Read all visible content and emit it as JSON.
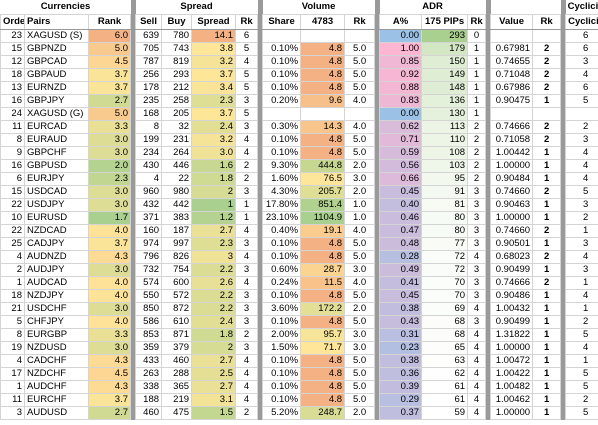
{
  "table": {
    "group_headers": [
      "Currencies",
      "Spread",
      "Volume",
      "ADR",
      "Cyclicity"
    ],
    "columns": [
      "Order",
      "Pairs",
      "Rank",
      "Sell",
      "Buy",
      "Spread",
      "Rk",
      "Share",
      "4783",
      "Rk",
      "A%",
      "175 PIPs",
      "Rk",
      "Value",
      "Rk",
      "Cyclicity"
    ],
    "rows": [
      [
        "23",
        "XAGUSD (S)",
        "6.0",
        "639",
        "780",
        "14.1",
        "6",
        null,
        null,
        null,
        "0.00",
        "293",
        "0",
        null,
        null,
        "6"
      ],
      [
        "15",
        "GBPNZD",
        "5.0",
        "705",
        "743",
        "3.8",
        "5",
        "0.10%",
        "4.8",
        "5.0",
        "1.00",
        "179",
        "1",
        "0.67981",
        "2",
        "6"
      ],
      [
        "12",
        "GBPCAD",
        "4.5",
        "787",
        "819",
        "3.2",
        "4",
        "0.10%",
        "4.8",
        "5.0",
        "0.85",
        "150",
        "1",
        "0.74655",
        "2",
        "3"
      ],
      [
        "18",
        "GBPAUD",
        "3.7",
        "256",
        "293",
        "3.7",
        "5",
        "0.10%",
        "4.8",
        "5.0",
        "0.92",
        "149",
        "1",
        "0.71048",
        "2",
        "4"
      ],
      [
        "13",
        "EURNZD",
        "3.7",
        "178",
        "212",
        "3.4",
        "5",
        "0.10%",
        "4.8",
        "5.0",
        "0.88",
        "148",
        "1",
        "0.67986",
        "2",
        "6"
      ],
      [
        "16",
        "GBPJPY",
        "2.7",
        "235",
        "258",
        "2.3",
        "3",
        "0.20%",
        "9.6",
        "4.0",
        "0.83",
        "136",
        "1",
        "0.90475",
        "1",
        "5"
      ],
      [
        "24",
        "XAGUSD (G)",
        "5.0",
        "168",
        "205",
        "3.7",
        "5",
        null,
        null,
        null,
        "0.00",
        "130",
        "1",
        null,
        null,
        null
      ],
      [
        "11",
        "EURCAD",
        "3.3",
        "8",
        "32",
        "2.4",
        "3",
        "0.30%",
        "14.3",
        "4.0",
        "0.62",
        "113",
        "2",
        "0.74666",
        "2",
        "2"
      ],
      [
        "8",
        "EURAUD",
        "3.0",
        "199",
        "231",
        "3.2",
        "4",
        "0.10%",
        "4.8",
        "5.0",
        "0.71",
        "110",
        "2",
        "0.71058",
        "2",
        "3"
      ],
      [
        "9",
        "GBPCHF",
        "3.0",
        "234",
        "264",
        "3.0",
        "4",
        "0.10%",
        "4.8",
        "5.0",
        "0.59",
        "108",
        "2",
        "1.00442",
        "1",
        "4"
      ],
      [
        "16",
        "GBPUSD",
        "2.0",
        "430",
        "446",
        "1.6",
        "2",
        "9.30%",
        "444.8",
        "2.0",
        "0.56",
        "103",
        "2",
        "1.00000",
        "1",
        "4"
      ],
      [
        "6",
        "EURJPY",
        "2.3",
        "4",
        "22",
        "1.8",
        "2",
        "1.60%",
        "76.5",
        "3.0",
        "0.66",
        "95",
        "2",
        "0.90484",
        "1",
        "4"
      ],
      [
        "15",
        "USDCAD",
        "3.0",
        "960",
        "980",
        "2",
        "3",
        "4.30%",
        "205.7",
        "2.0",
        "0.45",
        "91",
        "3",
        "0.74660",
        "2",
        "5"
      ],
      [
        "22",
        "USDJPY",
        "3.0",
        "432",
        "442",
        "1",
        "1",
        "17.80%",
        "851.4",
        "1.0",
        "0.40",
        "81",
        "3",
        "0.90463",
        "1",
        "3"
      ],
      [
        "10",
        "EURUSD",
        "1.7",
        "371",
        "383",
        "1.2",
        "1",
        "23.10%",
        "1104.9",
        "1.0",
        "0.46",
        "80",
        "3",
        "1.00000",
        "1",
        "2"
      ],
      [
        "22",
        "NZDCAD",
        "4.0",
        "160",
        "187",
        "2.7",
        "4",
        "0.40%",
        "19.1",
        "4.0",
        "0.47",
        "80",
        "3",
        "0.74660",
        "2",
        "1"
      ],
      [
        "25",
        "CADJPY",
        "3.7",
        "974",
        "997",
        "2.3",
        "3",
        "0.10%",
        "4.8",
        "5.0",
        "0.48",
        "77",
        "3",
        "0.90501",
        "1",
        "3"
      ],
      [
        "4",
        "AUDNZD",
        "4.3",
        "796",
        "826",
        "3",
        "4",
        "0.10%",
        "4.8",
        "5.0",
        "0.28",
        "72",
        "4",
        "0.68023",
        "2",
        "4"
      ],
      [
        "2",
        "AUDJPY",
        "3.0",
        "732",
        "754",
        "2.2",
        "3",
        "0.60%",
        "28.7",
        "3.0",
        "0.49",
        "72",
        "3",
        "0.90499",
        "1",
        "3"
      ],
      [
        "1",
        "AUDCAD",
        "4.0",
        "574",
        "600",
        "2.6",
        "4",
        "0.24%",
        "11.5",
        "4.0",
        "0.41",
        "70",
        "3",
        "0.74666",
        "2",
        "1"
      ],
      [
        "18",
        "NZDJPY",
        "4.0",
        "550",
        "572",
        "2.2",
        "3",
        "0.10%",
        "4.8",
        "5.0",
        "0.45",
        "70",
        "3",
        "0.90486",
        "1",
        "4"
      ],
      [
        "21",
        "USDCHF",
        "3.0",
        "850",
        "872",
        "2.2",
        "3",
        "3.60%",
        "172.2",
        "2.0",
        "0.38",
        "69",
        "4",
        "1.00432",
        "1",
        "1"
      ],
      [
        "5",
        "CHFJPY",
        "4.0",
        "586",
        "610",
        "2.4",
        "3",
        "0.10%",
        "4.8",
        "5.0",
        "0.43",
        "68",
        "3",
        "0.90499",
        "1",
        "2"
      ],
      [
        "8",
        "EURGBP",
        "3.3",
        "853",
        "871",
        "1.8",
        "2",
        "2.00%",
        "95.7",
        "3.0",
        "0.31",
        "68",
        "4",
        "1.31822",
        "1",
        "5"
      ],
      [
        "19",
        "NZDUSD",
        "3.0",
        "359",
        "379",
        "2",
        "3",
        "1.50%",
        "71.7",
        "3.0",
        "0.23",
        "65",
        "4",
        "1.00000",
        "1",
        "4"
      ],
      [
        "4",
        "CADCHF",
        "4.3",
        "433",
        "460",
        "2.7",
        "4",
        "0.10%",
        "4.8",
        "5.0",
        "0.38",
        "63",
        "4",
        "1.00472",
        "1",
        "1"
      ],
      [
        "17",
        "NZDCHF",
        "4.5",
        "263",
        "288",
        "2.5",
        "4",
        "0.10%",
        "4.8",
        "5.0",
        "0.36",
        "62",
        "4",
        "1.00422",
        "1",
        "5"
      ],
      [
        "1",
        "AUDCHF",
        "4.3",
        "338",
        "365",
        "2.7",
        "4",
        "0.10%",
        "4.8",
        "5.0",
        "0.39",
        "61",
        "4",
        "1.00482",
        "1",
        "5"
      ],
      [
        "11",
        "EURCHF",
        "3.7",
        "188",
        "219",
        "3.1",
        "4",
        "0.10%",
        "4.8",
        "5.0",
        "0.29",
        "61",
        "4",
        "1.00462",
        "1",
        "2"
      ],
      [
        "3",
        "AUDUSD",
        "2.7",
        "460",
        "475",
        "1.5",
        "2",
        "5.20%",
        "248.7",
        "2.0",
        "0.37",
        "59",
        "4",
        "1.00000",
        "1",
        "5"
      ]
    ]
  }
}
